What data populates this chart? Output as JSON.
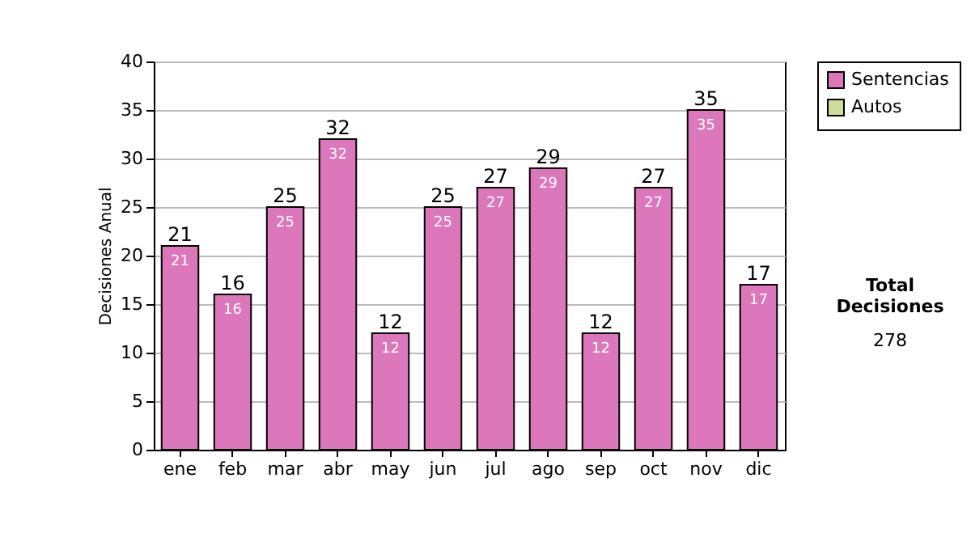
{
  "chart_data": {
    "type": "bar",
    "stacked": true,
    "ylabel": "Decisiones Anual",
    "categories": [
      "ene",
      "feb",
      "mar",
      "abr",
      "may",
      "jun",
      "jul",
      "ago",
      "sep",
      "oct",
      "nov",
      "dic"
    ],
    "series": [
      {
        "name": "Sentencias",
        "color": "#dd77bb",
        "values": [
          21,
          16,
          25,
          32,
          12,
          25,
          27,
          29,
          12,
          27,
          35,
          17
        ]
      },
      {
        "name": "Autos",
        "color": "#ccdd99",
        "values": [
          null,
          null,
          null,
          null,
          null,
          null,
          null,
          null,
          null,
          null,
          null,
          null
        ]
      }
    ],
    "totals": [
      "21",
      "16",
      "25",
      "32",
      "12",
      "25",
      "27",
      "29",
      "12",
      "27",
      "35",
      "17"
    ],
    "data_labels": true,
    "ylim": [
      0,
      40
    ],
    "yticks": [
      0,
      5,
      10,
      15,
      20,
      25,
      30,
      35,
      40
    ],
    "grid": "y",
    "legend": "right",
    "annotations": [
      "Total Decisiones",
      "278"
    ]
  }
}
